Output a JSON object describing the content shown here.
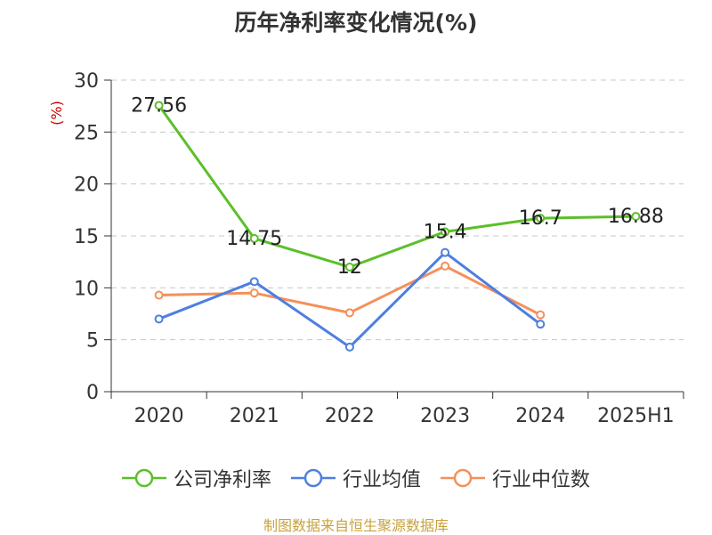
{
  "title": "历年净利率变化情况(%)",
  "footer": "制图数据来自恒生聚源数据库",
  "chart_data": {
    "type": "line",
    "title": "历年净利率变化情况(%)",
    "ylabel": "(%)",
    "xlabel": "",
    "categories": [
      "2020",
      "2021",
      "2022",
      "2023",
      "2024",
      "2025H1"
    ],
    "ylim": [
      0,
      30
    ],
    "yticks": [
      0,
      5,
      10,
      15,
      20,
      25,
      30
    ],
    "grid": true,
    "legend_position": "bottom",
    "series": [
      {
        "name": "公司净利率",
        "color": "#5cbf2a",
        "values": [
          27.56,
          14.75,
          12,
          15.4,
          16.7,
          16.88
        ],
        "labels": [
          "27.56",
          "14.75",
          "12",
          "15.4",
          "16.7",
          "16.88"
        ]
      },
      {
        "name": "行业均值",
        "color": "#4e7fe0",
        "values": [
          7.0,
          10.6,
          4.3,
          13.4,
          6.5,
          null
        ]
      },
      {
        "name": "行业中位数",
        "color": "#f5905a",
        "values": [
          9.3,
          9.5,
          7.6,
          12.1,
          7.4,
          null
        ]
      }
    ]
  }
}
